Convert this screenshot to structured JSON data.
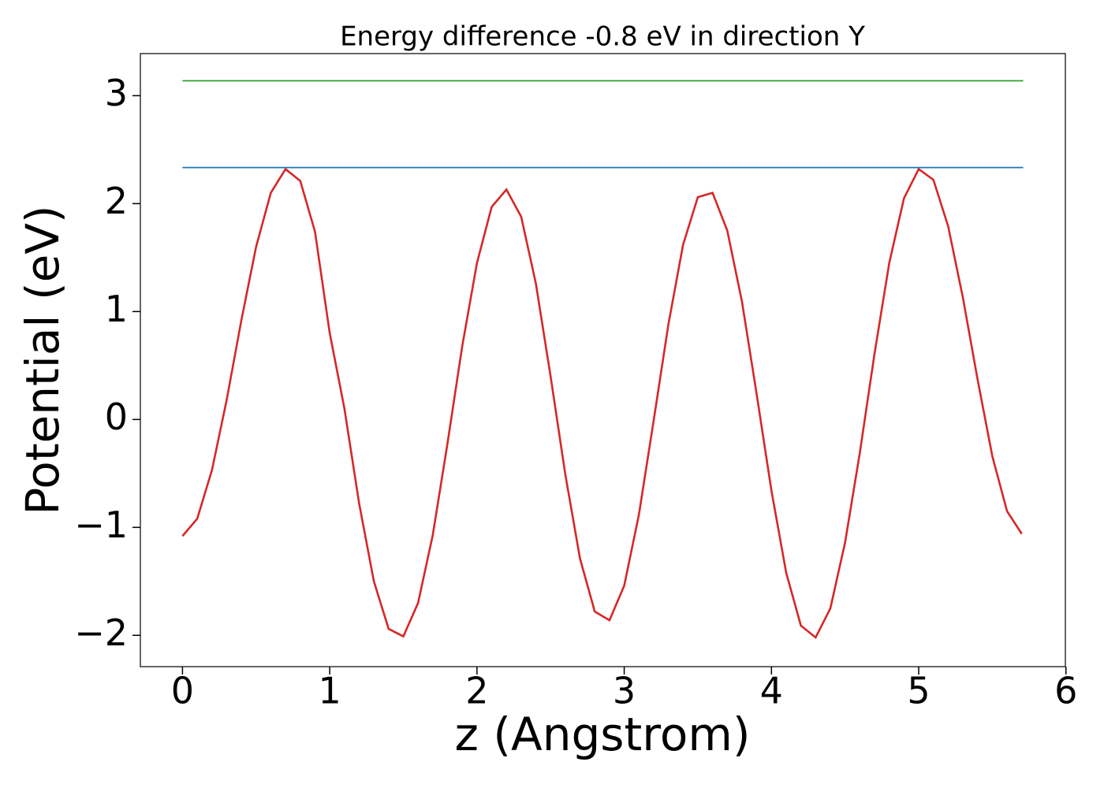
{
  "chart_data": {
    "type": "line",
    "title": "Energy difference -0.8 eV in direction Y",
    "xlabel": "z (Angstrom)",
    "ylabel": "Potential (eV)",
    "xlim": [
      -0.286,
      5.996
    ],
    "ylim": [
      -2.29,
      3.39
    ],
    "xticks": [
      0,
      1,
      2,
      3,
      4,
      5,
      6
    ],
    "yticks": [
      {
        "value": -2,
        "label": "−2"
      },
      {
        "value": -1,
        "label": "−1"
      },
      0,
      1,
      2,
      3
    ],
    "series": [
      {
        "color": "#d62728",
        "x": [
          0,
          0.1,
          0.2,
          0.3,
          0.4,
          0.5,
          0.6,
          0.7,
          0.8,
          0.9,
          1.0,
          1.1,
          1.2,
          1.3,
          1.4,
          1.5,
          1.6,
          1.7,
          1.8,
          1.9,
          2.0,
          2.1,
          2.2,
          2.3,
          2.4,
          2.5,
          2.6,
          2.7,
          2.8,
          2.9,
          3.0,
          3.1,
          3.2,
          3.3,
          3.4,
          3.5,
          3.6,
          3.7,
          3.8,
          3.9,
          4.0,
          4.1,
          4.2,
          4.3,
          4.4,
          4.5,
          4.6,
          4.7,
          4.8,
          4.9,
          5.0,
          5.1,
          5.2,
          5.3,
          5.4,
          5.5,
          5.6,
          5.7
        ],
        "values": [
          -1.08,
          -0.92,
          -0.47,
          0.18,
          0.92,
          1.6,
          2.1,
          2.32,
          2.21,
          1.74,
          0.8,
          0.1,
          -0.78,
          -1.5,
          -1.94,
          -2.01,
          -1.7,
          -1.07,
          -0.22,
          0.68,
          1.45,
          1.97,
          2.13,
          1.88,
          1.26,
          0.4,
          -0.51,
          -1.29,
          -1.78,
          -1.86,
          -1.54,
          -0.88,
          -0.01,
          0.88,
          1.62,
          2.06,
          2.1,
          1.75,
          1.09,
          0.23,
          -0.66,
          -1.42,
          -1.91,
          -2.02,
          -1.75,
          -1.14,
          -0.31,
          0.61,
          1.45,
          2.05,
          2.32,
          2.22,
          1.79,
          1.13,
          0.37,
          -0.34,
          -0.85,
          -1.06
        ]
      },
      {
        "color": "#1f77b4",
        "x": [
          0,
          5.71
        ],
        "values": [
          2.334,
          2.334
        ]
      },
      {
        "color": "#2ca02c",
        "x": [
          0,
          5.71
        ],
        "values": [
          3.138,
          3.138
        ]
      }
    ]
  }
}
